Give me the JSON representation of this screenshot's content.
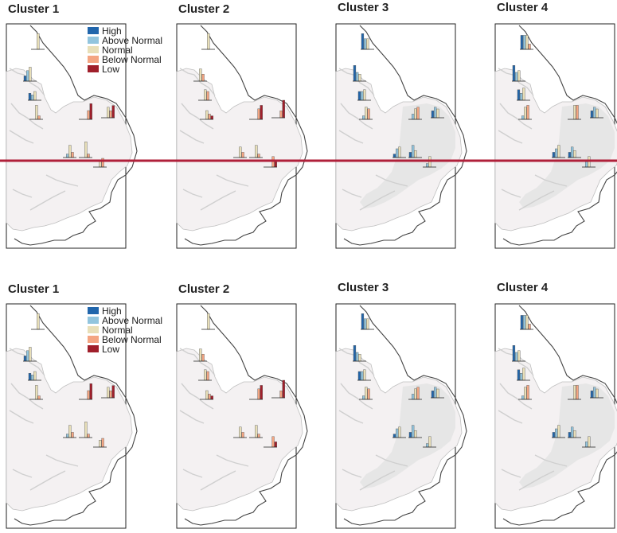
{
  "legend": [
    {
      "label": "High",
      "color": "#2166ac"
    },
    {
      "label": "Above Normal",
      "color": "#92c5de"
    },
    {
      "label": "Normal",
      "color": "#e8dfb8"
    },
    {
      "label": "Below Normal",
      "color": "#f4a582"
    },
    {
      "label": "Low",
      "color": "#a01f2b"
    }
  ],
  "highlight_line_color": "#b0203a",
  "chart_data": [
    {
      "type": "bar",
      "title": "Cluster 1",
      "categories": [
        "High",
        "Above Normal",
        "Normal",
        "Below Normal",
        "Low"
      ],
      "sites": [
        {
          "values": [
            0,
            0,
            0.9,
            0,
            0
          ]
        },
        {
          "values": [
            0.3,
            0.6,
            0.8,
            0,
            0
          ]
        },
        {
          "values": [
            0.4,
            0.3,
            0.5,
            0,
            0
          ]
        },
        {
          "values": [
            0,
            0,
            0.8,
            0.2,
            0
          ]
        },
        {
          "values": [
            0,
            0,
            0,
            0.5,
            0.9
          ]
        },
        {
          "values": [
            0,
            0,
            0.6,
            0.4,
            0.7
          ]
        },
        {
          "values": [
            0,
            0.2,
            0.7,
            0.3,
            0
          ]
        },
        {
          "values": [
            0,
            0,
            0.9,
            0.2,
            0
          ]
        },
        {
          "values": [
            0,
            0,
            0.4,
            0.5,
            0
          ]
        }
      ]
    },
    {
      "type": "bar",
      "title": "Cluster 2",
      "categories": [
        "High",
        "Above Normal",
        "Normal",
        "Below Normal",
        "Low"
      ],
      "sites": [
        {
          "values": [
            0,
            0,
            0.9,
            0,
            0
          ]
        },
        {
          "values": [
            0,
            0,
            0.7,
            0.4,
            0
          ]
        },
        {
          "values": [
            0,
            0,
            0.6,
            0.5,
            0
          ]
        },
        {
          "values": [
            0,
            0,
            0.5,
            0.3,
            0.2
          ]
        },
        {
          "values": [
            0,
            0,
            0,
            0.6,
            0.8
          ]
        },
        {
          "values": [
            0,
            0,
            0,
            0.4,
            1.0
          ]
        },
        {
          "values": [
            0,
            0,
            0.6,
            0.3,
            0
          ]
        },
        {
          "values": [
            0,
            0,
            0.7,
            0.2,
            0
          ]
        },
        {
          "values": [
            0,
            0,
            0,
            0.6,
            0.3
          ]
        }
      ]
    },
    {
      "type": "bar",
      "title": "Cluster 3",
      "categories": [
        "High",
        "Above Normal",
        "Normal",
        "Below Normal",
        "Low"
      ],
      "sites": [
        {
          "values": [
            0.9,
            0.6,
            0.6,
            0,
            0
          ]
        },
        {
          "values": [
            0.9,
            0.5,
            0.4,
            0,
            0
          ]
        },
        {
          "values": [
            0.5,
            0.5,
            0.6,
            0,
            0
          ]
        },
        {
          "values": [
            0,
            0.2,
            0.7,
            0.6,
            0
          ]
        },
        {
          "values": [
            0,
            0.3,
            0.6,
            0.7,
            0
          ]
        },
        {
          "values": [
            0.4,
            0.6,
            0.5,
            0,
            0
          ]
        },
        {
          "values": [
            0.2,
            0.5,
            0.6,
            0,
            0
          ]
        },
        {
          "values": [
            0.3,
            0.7,
            0.4,
            0,
            0
          ]
        },
        {
          "values": [
            0,
            0.2,
            0.6,
            0,
            0
          ]
        }
      ]
    },
    {
      "type": "bar",
      "title": "Cluster 4",
      "categories": [
        "High",
        "Above Normal",
        "Normal",
        "Below Normal",
        "Low"
      ],
      "sites": [
        {
          "values": [
            0.8,
            0.8,
            0.8,
            0.3,
            0
          ]
        },
        {
          "values": [
            0.9,
            0.5,
            0.6,
            0,
            0
          ]
        },
        {
          "values": [
            0.6,
            0.4,
            0.7,
            0,
            0
          ]
        },
        {
          "values": [
            0,
            0.2,
            0.7,
            0.8,
            0
          ]
        },
        {
          "values": [
            0,
            0,
            0.8,
            0.8,
            0
          ]
        },
        {
          "values": [
            0.4,
            0.6,
            0.5,
            0,
            0
          ]
        },
        {
          "values": [
            0.3,
            0.5,
            0.7,
            0,
            0
          ]
        },
        {
          "values": [
            0.3,
            0.6,
            0.4,
            0,
            0
          ]
        },
        {
          "values": [
            0,
            0.3,
            0.6,
            0,
            0
          ]
        }
      ]
    },
    {
      "type": "bar",
      "title": "Cluster 1",
      "categories": [
        "High",
        "Above Normal",
        "Normal",
        "Below Normal",
        "Low"
      ],
      "sites": [
        {
          "values": [
            0,
            0,
            0.9,
            0,
            0
          ]
        },
        {
          "values": [
            0.3,
            0.6,
            0.8,
            0,
            0
          ]
        },
        {
          "values": [
            0.4,
            0.3,
            0.5,
            0,
            0
          ]
        },
        {
          "values": [
            0,
            0,
            0.8,
            0.2,
            0
          ]
        },
        {
          "values": [
            0,
            0,
            0,
            0.5,
            0.9
          ]
        },
        {
          "values": [
            0,
            0,
            0.6,
            0.4,
            0.7
          ]
        },
        {
          "values": [
            0,
            0.2,
            0.7,
            0.3,
            0
          ]
        },
        {
          "values": [
            0,
            0,
            0.9,
            0.2,
            0
          ]
        },
        {
          "values": [
            0,
            0,
            0.4,
            0.5,
            0
          ]
        }
      ]
    },
    {
      "type": "bar",
      "title": "Cluster 2",
      "categories": [
        "High",
        "Above Normal",
        "Normal",
        "Below Normal",
        "Low"
      ],
      "sites": [
        {
          "values": [
            0,
            0,
            0.9,
            0,
            0
          ]
        },
        {
          "values": [
            0,
            0,
            0.7,
            0.4,
            0
          ]
        },
        {
          "values": [
            0,
            0,
            0.6,
            0.5,
            0
          ]
        },
        {
          "values": [
            0,
            0,
            0.5,
            0.3,
            0.2
          ]
        },
        {
          "values": [
            0,
            0,
            0,
            0.6,
            0.8
          ]
        },
        {
          "values": [
            0,
            0,
            0,
            0.4,
            1.0
          ]
        },
        {
          "values": [
            0,
            0,
            0.6,
            0.3,
            0
          ]
        },
        {
          "values": [
            0,
            0,
            0.7,
            0.2,
            0
          ]
        },
        {
          "values": [
            0,
            0,
            0,
            0.6,
            0.3
          ]
        }
      ]
    },
    {
      "type": "bar",
      "title": "Cluster 3",
      "categories": [
        "High",
        "Above Normal",
        "Normal",
        "Below Normal",
        "Low"
      ],
      "sites": [
        {
          "values": [
            0.9,
            0.6,
            0.6,
            0,
            0
          ]
        },
        {
          "values": [
            0.9,
            0.5,
            0.4,
            0,
            0
          ]
        },
        {
          "values": [
            0.5,
            0.5,
            0.6,
            0,
            0
          ]
        },
        {
          "values": [
            0,
            0.2,
            0.7,
            0.6,
            0
          ]
        },
        {
          "values": [
            0,
            0.3,
            0.6,
            0.7,
            0
          ]
        },
        {
          "values": [
            0.4,
            0.6,
            0.5,
            0,
            0
          ]
        },
        {
          "values": [
            0.2,
            0.5,
            0.6,
            0,
            0
          ]
        },
        {
          "values": [
            0.3,
            0.7,
            0.4,
            0,
            0
          ]
        },
        {
          "values": [
            0,
            0.2,
            0.6,
            0,
            0
          ]
        }
      ]
    },
    {
      "type": "bar",
      "title": "Cluster 4",
      "categories": [
        "High",
        "Above Normal",
        "Normal",
        "Below Normal",
        "Low"
      ],
      "sites": [
        {
          "values": [
            0.8,
            0.8,
            0.8,
            0.3,
            0
          ]
        },
        {
          "values": [
            0.9,
            0.5,
            0.6,
            0,
            0
          ]
        },
        {
          "values": [
            0.6,
            0.4,
            0.7,
            0,
            0
          ]
        },
        {
          "values": [
            0,
            0.2,
            0.7,
            0.8,
            0
          ]
        },
        {
          "values": [
            0,
            0,
            0.8,
            0.8,
            0
          ]
        },
        {
          "values": [
            0.4,
            0.6,
            0.5,
            0,
            0
          ]
        },
        {
          "values": [
            0.3,
            0.5,
            0.7,
            0,
            0
          ]
        },
        {
          "values": [
            0.3,
            0.6,
            0.4,
            0,
            0
          ]
        },
        {
          "values": [
            0,
            0.3,
            0.6,
            0,
            0
          ]
        }
      ]
    }
  ]
}
